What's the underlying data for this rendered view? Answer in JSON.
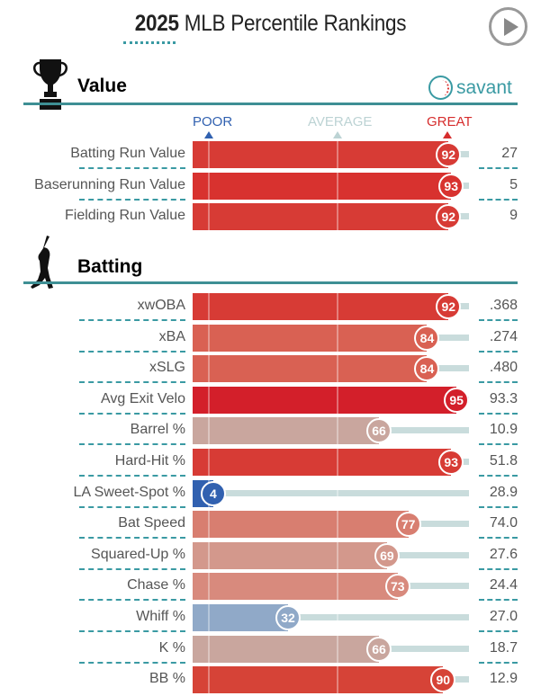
{
  "header": {
    "title_year": "2025",
    "title_rest": " MLB Percentile Rankings",
    "brand": "savant"
  },
  "axis": {
    "poor": "POOR",
    "average": "AVERAGE",
    "great": "GREAT"
  },
  "colors": {
    "accent": "#3e8f94",
    "poor": "#3161b0",
    "average": "#bcd3d4",
    "great": "#d62d2d"
  },
  "chart_data": [
    {
      "type": "bar",
      "section": "Value",
      "categories": [
        "Batting Run Value",
        "Baserunning Run Value",
        "Fielding Run Value"
      ],
      "percentiles": [
        92,
        93,
        92
      ],
      "values": [
        "27",
        "5",
        "9"
      ],
      "colors": [
        "#d73b35",
        "#d8322f",
        "#d73b35"
      ],
      "xlim": [
        0,
        100
      ]
    },
    {
      "type": "bar",
      "section": "Batting",
      "categories": [
        "xwOBA",
        "xBA",
        "xSLG",
        "Avg Exit Velo",
        "Barrel %",
        "Hard-Hit %",
        "LA Sweet-Spot %",
        "Bat Speed",
        "Squared-Up %",
        "Chase %",
        "Whiff %",
        "K %",
        "BB %"
      ],
      "percentiles": [
        92,
        84,
        84,
        95,
        66,
        93,
        4,
        77,
        69,
        73,
        32,
        66,
        90
      ],
      "values": [
        ".368",
        ".274",
        ".480",
        "93.3",
        "10.9",
        "51.8",
        "28.9",
        "74.0",
        "27.6",
        "24.4",
        "27.0",
        "18.7",
        "12.9"
      ],
      "colors": [
        "#d73b35",
        "#d96153",
        "#d96153",
        "#d31f2a",
        "#c9a69e",
        "#d73b35",
        "#3161b0",
        "#d87e70",
        "#d3988c",
        "#d88a7d",
        "#90a9c8",
        "#c9a69e",
        "#d64337"
      ],
      "xlim": [
        0,
        100
      ]
    }
  ]
}
